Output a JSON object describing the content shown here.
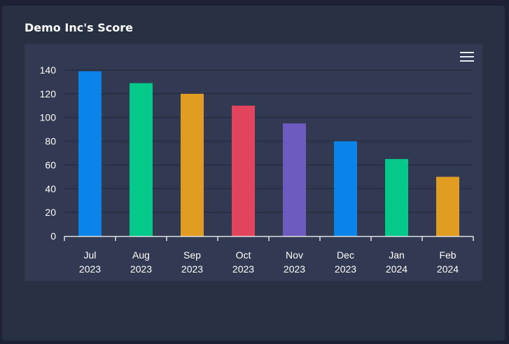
{
  "card": {
    "title": "Demo Inc's Score"
  },
  "toolbar": {
    "menu_icon": "hamburger-menu-icon"
  },
  "colors": {
    "page_background": "#1c2233",
    "card_background": "#283044",
    "plot_background": "#313a52",
    "gridline": "#283044",
    "axis": "#e0e0e0"
  },
  "chart_data": {
    "type": "bar",
    "title": "Demo Inc's Score",
    "xlabel": "",
    "ylabel": "",
    "categories": [
      [
        "Jul",
        "2023"
      ],
      [
        "Aug",
        "2023"
      ],
      [
        "Sep",
        "2023"
      ],
      [
        "Oct",
        "2023"
      ],
      [
        "Nov",
        "2023"
      ],
      [
        "Dec",
        "2023"
      ],
      [
        "Jan",
        "2024"
      ],
      [
        "Feb",
        "2024"
      ]
    ],
    "values": [
      139,
      129,
      120,
      110,
      95,
      80,
      65,
      50
    ],
    "bar_colors": [
      "#0a84e8",
      "#05c98a",
      "#e09d22",
      "#e2445e",
      "#6e5bbf",
      "#0a84e8",
      "#05c98a",
      "#e09d22"
    ],
    "ylim": [
      0,
      140
    ],
    "yticks": [
      0,
      20,
      40,
      60,
      80,
      100,
      120,
      140
    ],
    "grid": true,
    "legend": "none"
  }
}
